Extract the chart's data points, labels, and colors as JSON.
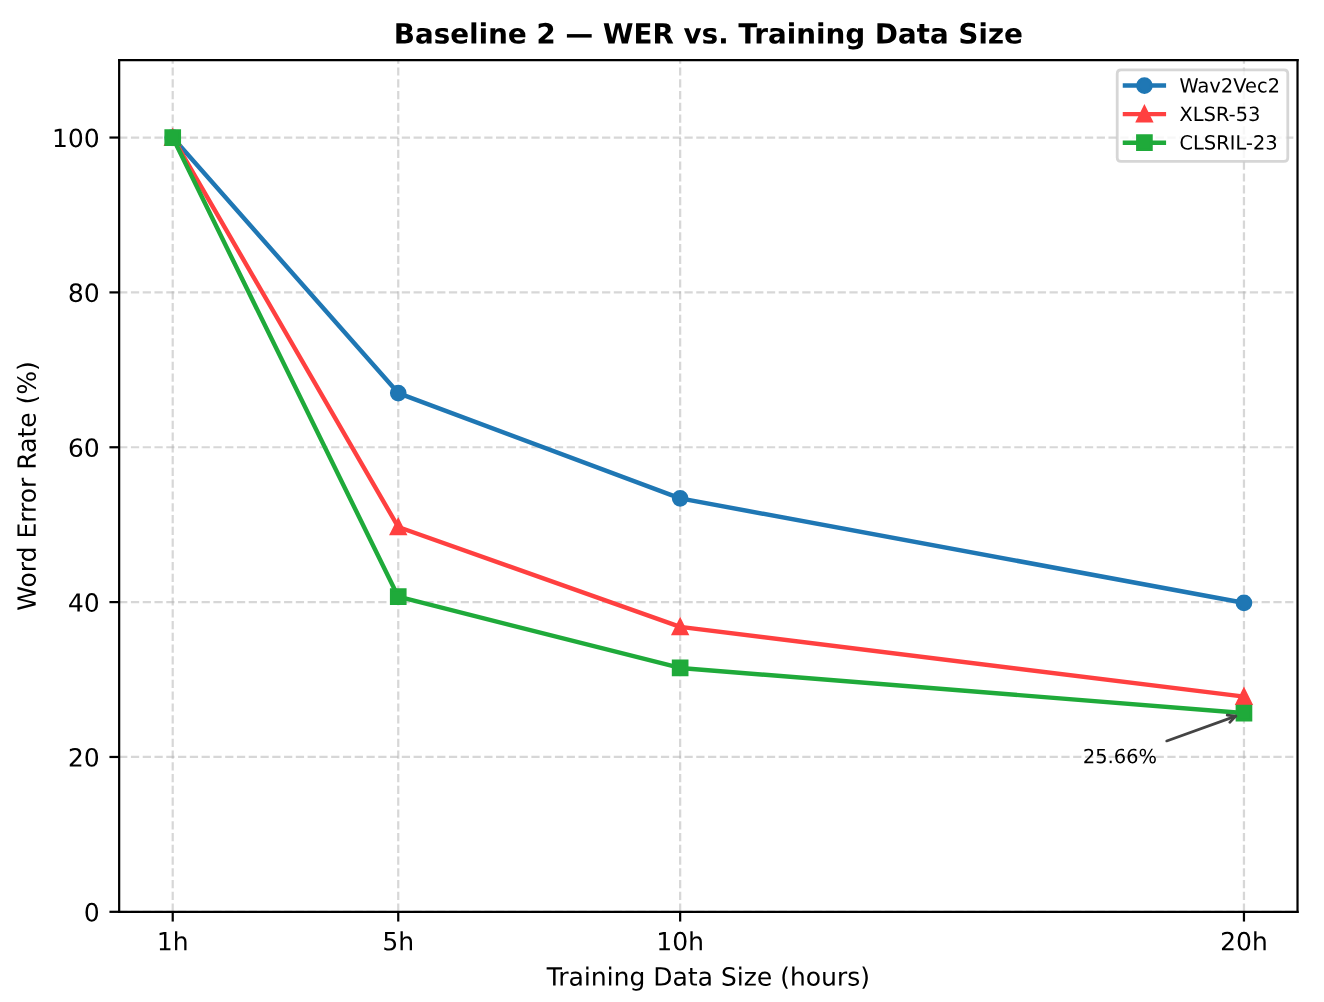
{
  "chart_data": {
    "type": "line",
    "title": "Baseline 2 — WER vs. Training Data Size",
    "xlabel": "Training Data Size (hours)",
    "ylabel": "Word Error Rate (%)",
    "x": [
      1,
      5,
      10,
      20
    ],
    "series": [
      {
        "name": "Wav2Vec2",
        "color": "#1f77b4",
        "marker": "circle",
        "values": [
          100,
          67.0,
          53.4,
          39.9
        ]
      },
      {
        "name": "XLSR-53",
        "color": "#ff4040",
        "marker": "triangle",
        "values": [
          100,
          49.7,
          36.8,
          27.8
        ]
      },
      {
        "name": "CLSRIL-23",
        "color": "#1faa3a",
        "marker": "square",
        "values": [
          100,
          40.7,
          31.5,
          25.66
        ]
      }
    ],
    "xlim": [
      0.05,
      20.95
    ],
    "xticks": [
      {
        "value": 1,
        "label": "1h"
      },
      {
        "value": 5,
        "label": "5h"
      },
      {
        "value": 10,
        "label": "10h"
      },
      {
        "value": 20,
        "label": "20h"
      }
    ],
    "ylim": [
      0,
      110
    ],
    "yticks": [
      0,
      20,
      40,
      60,
      80,
      100
    ],
    "grid": true,
    "legend": "top right",
    "line_style": "solid",
    "annotations": [
      {
        "text": "25.66%",
        "x": 20,
        "y": 25.66
      }
    ]
  }
}
